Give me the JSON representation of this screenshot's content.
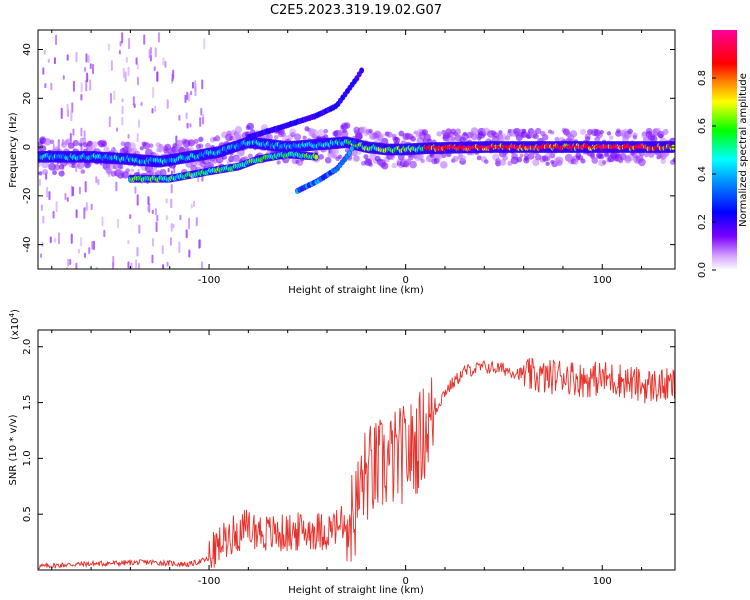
{
  "figure": {
    "title": "C2E5.2023.319.19.02.G07"
  },
  "colors": {
    "snr_line": "#e8302a",
    "axis": "#000000",
    "background": "#ffffff"
  },
  "chart_data": [
    {
      "type": "heatmap",
      "xlabel": "Height of straight line (km)",
      "ylabel": "Frequency (Hz)",
      "xlim": [
        -187,
        137
      ],
      "ylim": [
        -50,
        48
      ],
      "x_ticks": [
        -100,
        0,
        100
      ],
      "x_tick_labels": [
        "-100",
        "0",
        "100"
      ],
      "y_ticks": [
        -40,
        -20,
        0,
        20,
        40
      ],
      "y_tick_labels": [
        "-40",
        "-20",
        "0",
        "20",
        "40"
      ],
      "colorbar": {
        "label": "Normalized spectral amplitude",
        "range": [
          0,
          1
        ],
        "ticks": [
          0.0,
          0.2,
          0.4,
          0.6,
          0.8
        ],
        "tick_labels": [
          "0.0",
          "0.2",
          "0.4",
          "0.6",
          "0.8"
        ],
        "colormap": [
          "#7a00ff",
          "#0000ff",
          "#00ffff",
          "#00ff00",
          "#ffff00",
          "#ff0000",
          "#ff0099"
        ]
      },
      "ridges": [
        {
          "name": "main",
          "points": [
            [
              -187,
              -4
            ],
            [
              -160,
              -4
            ],
            [
              -140,
              -5
            ],
            [
              -125,
              -6
            ],
            [
              -110,
              -4
            ],
            [
              -95,
              -2
            ],
            [
              -80,
              2
            ],
            [
              -60,
              0
            ],
            [
              -45,
              1
            ],
            [
              -30,
              2
            ],
            [
              -20,
              0
            ],
            [
              -10,
              -1
            ],
            [
              0,
              -1
            ],
            [
              10,
              -0.5
            ],
            [
              40,
              0
            ],
            [
              80,
              0
            ],
            [
              137,
              0
            ]
          ]
        },
        {
          "name": "lower",
          "points": [
            [
              -140,
              -13
            ],
            [
              -120,
              -13
            ],
            [
              -100,
              -10
            ],
            [
              -85,
              -8
            ],
            [
              -75,
              -5
            ],
            [
              -60,
              -3
            ],
            [
              -45,
              -4
            ]
          ]
        },
        {
          "name": "upper",
          "points": [
            [
              -80,
              4
            ],
            [
              -60,
              9
            ],
            [
              -45,
              13
            ],
            [
              -35,
              17
            ],
            [
              -25,
              28
            ],
            [
              -22,
              32
            ]
          ]
        },
        {
          "name": "diagonal",
          "points": [
            [
              -55,
              -18
            ],
            [
              -45,
              -14
            ],
            [
              -35,
              -9
            ],
            [
              -28,
              -2
            ],
            [
              -25,
              5
            ]
          ]
        }
      ]
    },
    {
      "type": "line",
      "xlabel": "Height of straight line (km)",
      "ylabel": "SNR (10 * v/v)",
      "y_multiplier": "(x10",
      "y_multiplier_exp": "4",
      "y_multiplier_close": ")",
      "xlim": [
        -187,
        137
      ],
      "ylim": [
        0,
        2.15
      ],
      "x_ticks": [
        -100,
        0,
        100
      ],
      "x_tick_labels": [
        "-100",
        "0",
        "100"
      ],
      "y_ticks": [
        0.5,
        1.0,
        1.5,
        2.0
      ],
      "y_tick_labels": [
        "0.5",
        "1.0",
        "1.5",
        "2.0"
      ],
      "series": [
        {
          "x": [
            -187,
            -170,
            -150,
            -130,
            -110,
            -100,
            -90,
            -80,
            -70,
            -60,
            -50,
            -40,
            -30,
            -25,
            -22,
            -20,
            -15,
            -10,
            -5,
            0,
            5,
            10,
            20,
            30,
            40,
            50,
            60,
            70,
            80,
            90,
            100,
            110,
            120,
            137
          ],
          "y": [
            0.03,
            0.05,
            0.06,
            0.07,
            0.05,
            0.1,
            0.28,
            0.35,
            0.3,
            0.3,
            0.33,
            0.32,
            0.4,
            0.55,
            0.8,
            0.85,
            0.9,
            0.95,
            1.0,
            1.05,
            1.1,
            1.25,
            1.6,
            1.78,
            1.82,
            1.8,
            1.75,
            1.72,
            1.75,
            1.7,
            1.72,
            1.7,
            1.65,
            1.65
          ]
        }
      ]
    }
  ]
}
